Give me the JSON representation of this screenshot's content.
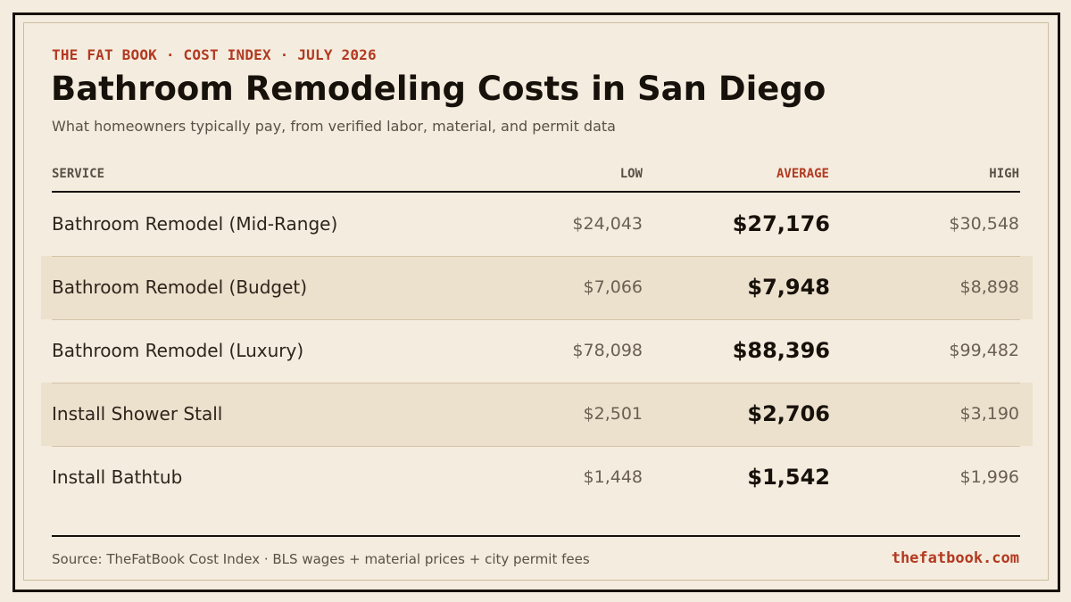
{
  "header": {
    "kicker": "THE FAT BOOK · COST INDEX · JULY 2026",
    "title": "Bathroom Remodeling Costs in San Diego",
    "subtitle": "What homeowners typically pay, from verified labor, material, and permit data"
  },
  "table": {
    "columns": {
      "service": "SERVICE",
      "low": "LOW",
      "average": "AVERAGE",
      "high": "HIGH"
    },
    "rows": [
      {
        "service": "Bathroom Remodel (Mid-Range)",
        "low": "$24,043",
        "average": "$27,176",
        "high": "$30,548"
      },
      {
        "service": "Bathroom Remodel (Budget)",
        "low": "$7,066",
        "average": "$7,948",
        "high": "$8,898"
      },
      {
        "service": "Bathroom Remodel (Luxury)",
        "low": "$78,098",
        "average": "$88,396",
        "high": "$99,482"
      },
      {
        "service": "Install Shower Stall",
        "low": "$2,501",
        "average": "$2,706",
        "high": "$3,190"
      },
      {
        "service": "Install Bathtub",
        "low": "$1,448",
        "average": "$1,542",
        "high": "$1,996"
      }
    ]
  },
  "footer": {
    "source": "Source: TheFatBook Cost Index · BLS wages + material prices + city permit fees",
    "site": "thefatbook.com"
  },
  "colors": {
    "background": "#f4ecde",
    "accent": "#b23a22",
    "ink": "#17110b",
    "row_shade": "#ece1cd"
  }
}
